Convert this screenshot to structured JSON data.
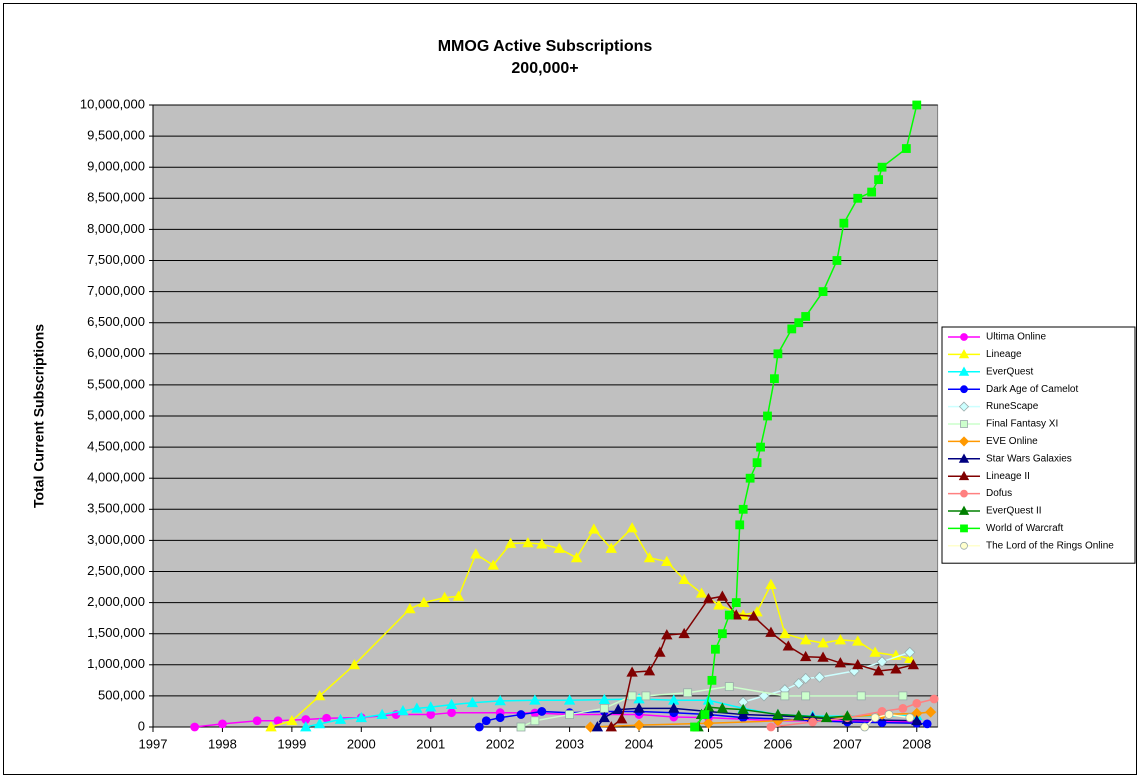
{
  "chart_data": {
    "type": "line",
    "title": "MMOG Active Subscriptions",
    "subtitle": "200,000+",
    "y_label": "Total Current Subscriptions",
    "xlim": [
      1997,
      2008.3
    ],
    "xticks": [
      1997,
      1998,
      1999,
      2000,
      2001,
      2002,
      2003,
      2004,
      2005,
      2006,
      2007,
      2008
    ],
    "ylim": [
      0,
      10000000
    ],
    "yticks": [
      {
        "value": 0,
        "label": "0"
      },
      {
        "value": 500000,
        "label": "500,000"
      },
      {
        "value": 1000000,
        "label": "1,000,000"
      },
      {
        "value": 1500000,
        "label": "1,500,000"
      },
      {
        "value": 2000000,
        "label": "2,000,000"
      },
      {
        "value": 2500000,
        "label": "2,500,000"
      },
      {
        "value": 3000000,
        "label": "3,000,000"
      },
      {
        "value": 3500000,
        "label": "3,500,000"
      },
      {
        "value": 4000000,
        "label": "4,000,000"
      },
      {
        "value": 4500000,
        "label": "4,500,000"
      },
      {
        "value": 5000000,
        "label": "5,000,000"
      },
      {
        "value": 5500000,
        "label": "5,500,000"
      },
      {
        "value": 6000000,
        "label": "6,000,000"
      },
      {
        "value": 6500000,
        "label": "6,500,000"
      },
      {
        "value": 7000000,
        "label": "7,000,000"
      },
      {
        "value": 7500000,
        "label": "7,500,000"
      },
      {
        "value": 8000000,
        "label": "8,000,000"
      },
      {
        "value": 8500000,
        "label": "8,500,000"
      },
      {
        "value": 9000000,
        "label": "9,000,000"
      },
      {
        "value": 9500000,
        "label": "9,500,000"
      },
      {
        "value": 10000000,
        "label": "10,000,000"
      }
    ],
    "grid": true,
    "legend": "right",
    "series": [
      {
        "name": "Ultima Online",
        "color": "#FF00FF",
        "marker": "circle",
        "x": [
          1997.6,
          1998,
          1998.5,
          1998.8,
          1999.2,
          1999.5,
          2000,
          2000.5,
          2001,
          2001.3,
          2002,
          2002.5,
          2003,
          2004,
          2004.5,
          2005,
          2006,
          2007,
          2008
        ],
        "values": [
          0,
          50000,
          100000,
          100000,
          120000,
          140000,
          150000,
          200000,
          200000,
          230000,
          230000,
          225000,
          200000,
          200000,
          160000,
          150000,
          100000,
          100000,
          80000
        ]
      },
      {
        "name": "Lineage",
        "color": "#FFFF00",
        "marker": "triangle",
        "x": [
          1998.7,
          1999,
          1999.4,
          1999.9,
          2000.7,
          2000.9,
          2001.2,
          2001.4,
          2001.65,
          2001.9,
          2002.15,
          2002.4,
          2002.6,
          2002.85,
          2003.1,
          2003.35,
          2003.6,
          2003.9,
          2004.15,
          2004.4,
          2004.65,
          2004.9,
          2005.15,
          2005.5,
          2005.7,
          2005.9,
          2006.1,
          2006.4,
          2006.65,
          2006.9,
          2007.15,
          2007.4,
          2007.7,
          2007.9
        ],
        "values": [
          0,
          100000,
          500000,
          1000000,
          1900000,
          2000000,
          2080000,
          2100000,
          2780000,
          2600000,
          2950000,
          2960000,
          2940000,
          2870000,
          2720000,
          3180000,
          2870000,
          3200000,
          2720000,
          2660000,
          2370000,
          2150000,
          1960000,
          1800000,
          1850000,
          2290000,
          1500000,
          1400000,
          1350000,
          1400000,
          1380000,
          1200000,
          1150000,
          1100000
        ]
      },
      {
        "name": "EverQuest",
        "color": "#00FFFF",
        "marker": "triangle",
        "x": [
          1999.2,
          1999.4,
          1999.7,
          2000,
          2000.3,
          2000.6,
          2000.8,
          2001,
          2001.3,
          2001.6,
          2002,
          2002.5,
          2003,
          2003.5,
          2004,
          2004.5,
          2005,
          2005.5,
          2006,
          2006.5,
          2007,
          2008
        ],
        "values": [
          0,
          50000,
          120000,
          150000,
          200000,
          260000,
          300000,
          320000,
          360000,
          390000,
          420000,
          430000,
          430000,
          440000,
          450000,
          430000,
          430000,
          300000,
          200000,
          175000,
          175000,
          180000
        ]
      },
      {
        "name": "Dark Age of Camelot",
        "color": "#0000FF",
        "marker": "circle",
        "x": [
          2001.7,
          2001.8,
          2002,
          2002.3,
          2002.6,
          2003,
          2003.5,
          2004,
          2004.5,
          2005,
          2005.5,
          2006,
          2006.5,
          2007,
          2007.5,
          2008,
          2008.15
        ],
        "values": [
          0,
          100000,
          150000,
          200000,
          250000,
          230000,
          250000,
          250000,
          230000,
          200000,
          150000,
          130000,
          100000,
          80000,
          70000,
          60000,
          50000
        ]
      },
      {
        "name": "RuneScape",
        "color": "#CCFFFF",
        "marker": "diamond",
        "x": [
          2005.5,
          2005.8,
          2006.1,
          2006.3,
          2006.4,
          2006.6,
          2007.1,
          2007.5,
          2007.9
        ],
        "values": [
          400000,
          500000,
          600000,
          700000,
          780000,
          800000,
          900000,
          1050000,
          1200000
        ]
      },
      {
        "name": "Final Fantasy XI",
        "color": "#CCFFCC",
        "marker": "square",
        "x": [
          2002.3,
          2002.5,
          2003,
          2003.5,
          2003.9,
          2004.1,
          2004.7,
          2005.3,
          2006.1,
          2006.4,
          2007.2,
          2007.8
        ],
        "values": [
          0,
          100000,
          200000,
          300000,
          500000,
          500000,
          550000,
          650000,
          500000,
          500000,
          500000,
          500000
        ]
      },
      {
        "name": "EVE Online",
        "color": "#FF9900",
        "marker": "diamond",
        "x": [
          2003.3,
          2004,
          2005,
          2006,
          2006.5,
          2007,
          2007.5,
          2008,
          2008.2
        ],
        "values": [
          0,
          30000,
          60000,
          100000,
          130000,
          160000,
          200000,
          220000,
          240000
        ]
      },
      {
        "name": "Star Wars Galaxies",
        "color": "#000080",
        "marker": "triangle",
        "x": [
          2003.4,
          2003.5,
          2003.7,
          2004,
          2004.5,
          2005,
          2005.5,
          2006,
          2006.5,
          2007,
          2008
        ],
        "values": [
          0,
          150000,
          280000,
          300000,
          300000,
          250000,
          200000,
          180000,
          150000,
          120000,
          100000
        ]
      },
      {
        "name": "Lineage II",
        "color": "#800000",
        "marker": "triangle",
        "x": [
          2003.6,
          2003.75,
          2003.9,
          2004.15,
          2004.3,
          2004.4,
          2004.65,
          2005,
          2005.2,
          2005.4,
          2005.65,
          2005.9,
          2006.15,
          2006.4,
          2006.65,
          2006.9,
          2007.15,
          2007.45,
          2007.7,
          2007.95
        ],
        "values": [
          0,
          130000,
          880000,
          900000,
          1200000,
          1480000,
          1500000,
          2060000,
          2100000,
          1800000,
          1780000,
          1520000,
          1300000,
          1130000,
          1120000,
          1030000,
          1000000,
          900000,
          930000,
          1000000
        ]
      },
      {
        "name": "Dofus",
        "color": "#FF8080",
        "marker": "circle",
        "x": [
          2005.9,
          2006.5,
          2007,
          2007.5,
          2007.8,
          2008,
          2008.25
        ],
        "values": [
          0,
          80000,
          150000,
          250000,
          300000,
          380000,
          450000
        ]
      },
      {
        "name": "EverQuest II",
        "color": "#008000",
        "marker": "triangle",
        "x": [
          2004.85,
          2004.9,
          2005,
          2005.2,
          2005.5,
          2006,
          2006.3,
          2006.7,
          2007
        ],
        "values": [
          0,
          200000,
          320000,
          300000,
          280000,
          200000,
          180000,
          150000,
          175000
        ]
      },
      {
        "name": "World of Warcraft",
        "color": "#00FF00",
        "marker": "square",
        "x": [
          2004.8,
          2004.95,
          2005.05,
          2005.1,
          2005.2,
          2005.3,
          2005.4,
          2005.45,
          2005.5,
          2005.6,
          2005.7,
          2005.75,
          2005.85,
          2005.95,
          2006,
          2006.2,
          2006.3,
          2006.4,
          2006.65,
          2006.85,
          2006.95,
          2007.15,
          2007.35,
          2007.45,
          2007.5,
          2007.85,
          2008
        ],
        "values": [
          0,
          200000,
          750000,
          1250000,
          1500000,
          1800000,
          2000000,
          3250000,
          3500000,
          4000000,
          4250000,
          4500000,
          5000000,
          5600000,
          6000000,
          6400000,
          6500000,
          6600000,
          7000000,
          7500000,
          8100000,
          8500000,
          8600000,
          8800000,
          9000000,
          9300000,
          10000000
        ]
      },
      {
        "name": "The Lord of the Rings Online",
        "color": "#FFFFCC",
        "marker": "circle",
        "x": [
          2007.25,
          2007.4,
          2007.6,
          2007.9
        ],
        "values": [
          0,
          150000,
          200000,
          150000
        ]
      }
    ]
  }
}
